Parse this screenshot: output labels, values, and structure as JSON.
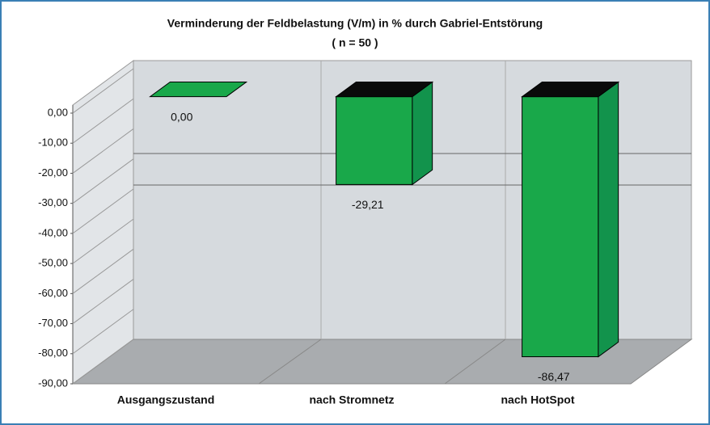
{
  "chart_data": {
    "type": "bar",
    "title": "Verminderung der Feldbelastung (V/m) in % durch Gabriel-Entstörung",
    "subtitle": "( n = 50 )",
    "categories": [
      "Ausgangszustand",
      "nach Stromnetz",
      "nach HotSpot"
    ],
    "values": [
      0,
      -29.21,
      -86.47
    ],
    "value_labels": [
      "0,00",
      "-29,21",
      "-86,47"
    ],
    "color": "#19a84a",
    "ylim": [
      -90,
      0
    ],
    "yticks": [
      {
        "value": 0,
        "label": "0,00"
      },
      {
        "value": -10,
        "label": "-10,00"
      },
      {
        "value": -20,
        "label": "-20,00"
      },
      {
        "value": -30,
        "label": "-30,00"
      },
      {
        "value": -40,
        "label": "-40,00"
      },
      {
        "value": -50,
        "label": "-50,00"
      },
      {
        "value": -60,
        "label": "-60,00"
      },
      {
        "value": -70,
        "label": "-70,00"
      },
      {
        "value": -80,
        "label": "-80,00"
      },
      {
        "value": -90,
        "label": "-90,00"
      }
    ]
  }
}
